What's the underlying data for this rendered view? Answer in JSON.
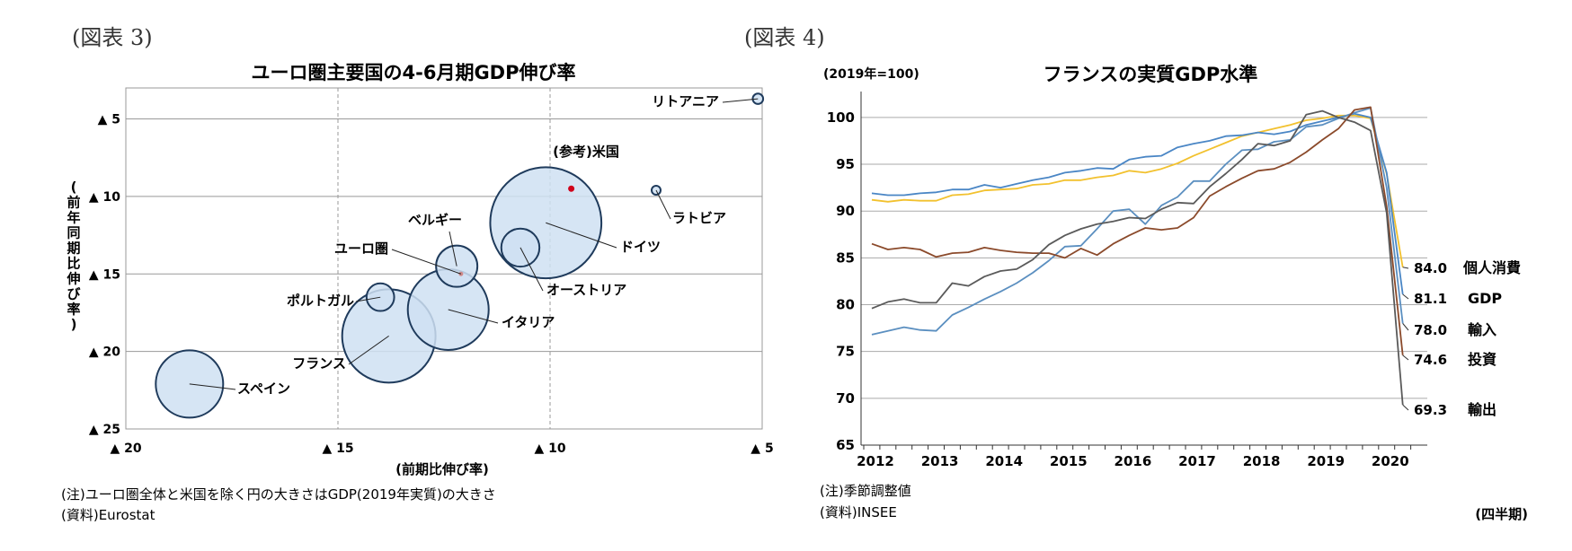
{
  "left": {
    "panel_tag": "(図表 3)",
    "notes": {
      "note": "(注)ユーロ圏全体と米国を除く円の大きさはGDP(2019年実質)の大きさ",
      "source": "(資料)Eurostat"
    }
  },
  "right": {
    "panel_tag": "(図表 4)",
    "notes": {
      "note": "(注)季節調整値",
      "source": "(資料)INSEE"
    }
  },
  "colors": {
    "bubble_fill": "#cfe0f2",
    "bubble_stroke": "#1f3b5c",
    "us_dot": "#d0021b",
    "gdp": "#4a86c5",
    "consumption": "#f2c12e",
    "imports": "#5b8fc0",
    "investment": "#8b4a2b",
    "exports": "#5a5a5a"
  },
  "chart_data": [
    {
      "type": "scatter",
      "title": "ユーロ圏主要国の4-6月期GDP伸び率",
      "xlabel": "(前期比伸び率)",
      "ylabel": "(前年同期比伸び率)",
      "x_ticks": [
        "▲ 20",
        "▲ 15",
        "▲ 10",
        "▲ 5"
      ],
      "y_ticks": [
        "▲ 5",
        "▲ 10",
        "▲ 15",
        "▲ 20",
        "▲ 25"
      ],
      "xlim": [
        -20,
        -5
      ],
      "ylim": [
        -25,
        -3
      ],
      "note": "bubble size = 2019 real GDP (except euro area and US)",
      "points": [
        {
          "label": "リトアニア",
          "x": -5.1,
          "y": -3.7,
          "gdp": 0.03
        },
        {
          "label": "ラトビア",
          "x": -7.5,
          "y": -9.6,
          "gdp": 0.02
        },
        {
          "label": "(参考)米国",
          "x": -9.5,
          "y": -9.5,
          "gdp": 0
        },
        {
          "label": "ドイツ",
          "x": -10.1,
          "y": -11.7,
          "gdp": 3.4
        },
        {
          "label": "オーストリア",
          "x": -10.7,
          "y": -13.3,
          "gdp": 0.4
        },
        {
          "label": "ベルギー",
          "x": -12.2,
          "y": -14.5,
          "gdp": 0.47
        },
        {
          "label": "ユーロ圏",
          "x": -12.1,
          "y": -15.0,
          "gdp": 0
        },
        {
          "label": "イタリア",
          "x": -12.4,
          "y": -17.3,
          "gdp": 1.8
        },
        {
          "label": "ポルトガル",
          "x": -14.0,
          "y": -16.5,
          "gdp": 0.21
        },
        {
          "label": "フランス",
          "x": -13.8,
          "y": -19.0,
          "gdp": 2.4
        },
        {
          "label": "スペイン",
          "x": -18.5,
          "y": -22.1,
          "gdp": 1.25
        }
      ]
    },
    {
      "type": "line",
      "title": "フランスの実質GDP水準",
      "unit_label": "(2019年=100)",
      "x_unit_label": "(四半期)",
      "x_ticks": [
        "2012",
        "2013",
        "2014",
        "2015",
        "2016",
        "2017",
        "2018",
        "2019",
        "2020"
      ],
      "y_ticks": [
        "65",
        "70",
        "75",
        "80",
        "85",
        "90",
        "95",
        "100"
      ],
      "ylim": [
        65,
        102
      ],
      "x_start": "2012Q1",
      "series": [
        {
          "name": "個人消費",
          "end_value": "84.0",
          "color_key": "consumption",
          "values": [
            91.2,
            91.0,
            91.2,
            91.1,
            91.1,
            91.7,
            91.8,
            92.2,
            92.3,
            92.4,
            92.8,
            92.9,
            93.3,
            93.3,
            93.6,
            93.8,
            94.3,
            94.1,
            94.5,
            95.1,
            95.9,
            96.6,
            97.3,
            98.0,
            98.4,
            98.8,
            99.2,
            99.7,
            99.9,
            100.2,
            100.2,
            99.9,
            94.0,
            84.0
          ]
        },
        {
          "name": "GDP",
          "end_value": "81.1",
          "color_key": "gdp",
          "values": [
            91.9,
            91.7,
            91.7,
            91.9,
            92.0,
            92.3,
            92.3,
            92.8,
            92.5,
            92.9,
            93.3,
            93.6,
            94.1,
            94.3,
            94.6,
            94.5,
            95.5,
            95.8,
            95.9,
            96.8,
            97.2,
            97.5,
            98.0,
            98.1,
            98.4,
            98.2,
            98.5,
            99.2,
            99.6,
            100.0,
            100.4,
            100.0,
            94.1,
            81.1
          ]
        },
        {
          "name": "輸入",
          "end_value": "78.0",
          "color_key": "imports",
          "values": [
            76.8,
            77.2,
            77.6,
            77.3,
            77.2,
            78.9,
            79.7,
            80.6,
            81.4,
            82.3,
            83.4,
            84.7,
            86.2,
            86.3,
            88.1,
            90.0,
            90.2,
            88.6,
            90.6,
            91.5,
            93.2,
            93.2,
            95.0,
            96.5,
            96.6,
            97.4,
            97.6,
            99.0,
            99.2,
            99.9,
            100.5,
            101.0,
            92.5,
            78.0
          ]
        },
        {
          "name": "投資",
          "end_value": "74.6",
          "color_key": "investment",
          "values": [
            86.5,
            85.9,
            86.1,
            85.9,
            85.1,
            85.5,
            85.6,
            86.1,
            85.8,
            85.6,
            85.5,
            85.5,
            85.0,
            86.0,
            85.3,
            86.5,
            87.4,
            88.2,
            88.0,
            88.2,
            89.3,
            91.6,
            92.6,
            93.5,
            94.3,
            94.5,
            95.2,
            96.3,
            97.6,
            98.8,
            100.8,
            101.1,
            90.5,
            74.6
          ]
        },
        {
          "name": "輸出",
          "end_value": "69.3",
          "color_key": "exports",
          "values": [
            79.6,
            80.3,
            80.6,
            80.2,
            80.2,
            82.3,
            82.0,
            83.0,
            83.6,
            83.8,
            84.8,
            86.4,
            87.4,
            88.1,
            88.6,
            88.9,
            89.3,
            89.2,
            90.2,
            90.9,
            90.8,
            92.6,
            94.0,
            95.5,
            97.2,
            97.0,
            97.5,
            100.3,
            100.7,
            100.0,
            99.5,
            98.6,
            89.8,
            69.3
          ]
        }
      ]
    }
  ]
}
